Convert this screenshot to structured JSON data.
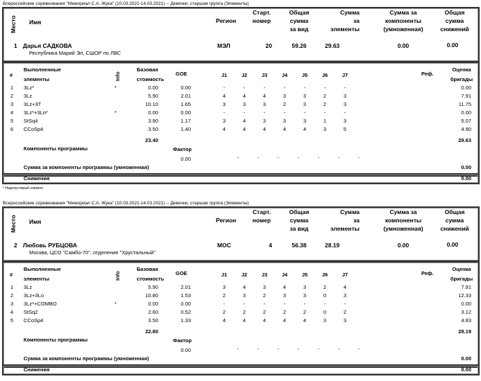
{
  "footnote": "* Недопустимый элемент",
  "labels": {
    "place": "Место",
    "name": "Имя",
    "region": "Регион",
    "start": [
      "Старт.",
      "номер"
    ],
    "total": [
      "Общая",
      "сумма",
      "за вид"
    ],
    "elements_sum": [
      "Сумма",
      "за",
      "элементы"
    ],
    "components_sum": [
      "Сумма за",
      "компоненты",
      "(умноженная)"
    ],
    "deductions_sum": [
      "Общая",
      "сумма",
      "снижений"
    ],
    "num": "#",
    "executed": [
      "Выполненные",
      "элементы"
    ],
    "info": "Info",
    "base": [
      "Базовая",
      "стоимость"
    ],
    "goe": "GOE",
    "judges": [
      "J1",
      "J2",
      "J3",
      "J4",
      "J5",
      "J6",
      "J7"
    ],
    "ref": "Реф.",
    "panel": [
      "Оценка",
      "бригады"
    ],
    "program_components": "Компоненты программы",
    "factor": "Фактор",
    "components_multiplied": "Сумма за компоненты программы (умноженная)",
    "deductions": "Снижения"
  },
  "skaters": [
    {
      "title": "Всероссийские соревнования \"Мемориал С.А. Жука\" (10.03.2021-14.03.2021)  --  Девочки, старшая группа  (Элементы)",
      "place": "1",
      "name": "Дарья САДКОВА",
      "club": "Республика Марий Эл, СШОР по ЛВС",
      "region": "МЭЛ",
      "start_number": "20",
      "total": "59.26",
      "elements_score": "29.63",
      "components_score": "0.00",
      "deductions_total": "0.00",
      "elements": [
        {
          "n": "1",
          "name": "3Lz*",
          "info": "*",
          "base": "0.00",
          "goe": "0.00",
          "j": [
            "-",
            "-",
            "-",
            "-",
            "-",
            "-",
            "-"
          ],
          "score": "0.00"
        },
        {
          "n": "2",
          "name": "3Lz",
          "info": "",
          "base": "5.90",
          "goe": "2.01",
          "j": [
            "4",
            "4",
            "4",
            "3",
            "3",
            "2",
            "3"
          ],
          "score": "7.91"
        },
        {
          "n": "3",
          "name": "3Lz+3T",
          "info": "",
          "base": "10.10",
          "goe": "1.65",
          "j": [
            "3",
            "3",
            "3",
            "2",
            "3",
            "2",
            "3"
          ],
          "score": "11.75"
        },
        {
          "n": "4",
          "name": "3Lz*+3Lo*",
          "info": "*",
          "base": "0.00",
          "goe": "0.00",
          "j": [
            "-",
            "-",
            "-",
            "-",
            "-",
            "-",
            "-"
          ],
          "score": "0.00"
        },
        {
          "n": "5",
          "name": "StSq4",
          "info": "",
          "base": "3.90",
          "goe": "1.17",
          "j": [
            "3",
            "4",
            "3",
            "3",
            "3",
            "1",
            "3"
          ],
          "score": "5.07"
        },
        {
          "n": "6",
          "name": "CCoSp4",
          "info": "",
          "base": "3.50",
          "goe": "1.40",
          "j": [
            "4",
            "4",
            "4",
            "4",
            "4",
            "3",
            "5"
          ],
          "score": "4.90"
        }
      ],
      "base_total": "23.40",
      "elements_total": "29.63",
      "factor": "0.00",
      "component_judges": [
        "-",
        "-",
        "-",
        "-",
        "-",
        "-",
        "-"
      ],
      "components_total": "0.00",
      "deductions": "0.00"
    },
    {
      "title": "Всероссийские соревнования \"Мемориал С.А. Жука\" (10.03.2021-14.03.2021)  --  Девочки, старшая группа  (Элементы)",
      "place": "2",
      "name": "Любовь РУБЦОВА",
      "club": "Москва, ЦСО \"Самбо-70\", отделение \"Хрустальный\"",
      "region": "МОС",
      "start_number": "4",
      "total": "56.38",
      "elements_score": "28.19",
      "components_score": "0.00",
      "deductions_total": "0.00",
      "elements": [
        {
          "n": "1",
          "name": "3Lz",
          "info": "",
          "base": "5.90",
          "goe": "2.01",
          "j": [
            "3",
            "4",
            "3",
            "4",
            "3",
            "2",
            "4"
          ],
          "score": "7.91"
        },
        {
          "n": "2",
          "name": "3Lz+3Lo",
          "info": "",
          "base": "10.80",
          "goe": "1.53",
          "j": [
            "2",
            "3",
            "2",
            "3",
            "3",
            "0",
            "3"
          ],
          "score": "12.33"
        },
        {
          "n": "3",
          "name": "3Lz*+COMBO",
          "info": "*",
          "base": "0.00",
          "goe": "0.00",
          "j": [
            "-",
            "-",
            "-",
            "-",
            "-",
            "-",
            "-"
          ],
          "score": "0.00"
        },
        {
          "n": "4",
          "name": "StSq2",
          "info": "",
          "base": "2.60",
          "goe": "0.52",
          "j": [
            "2",
            "2",
            "2",
            "2",
            "2",
            "0",
            "2"
          ],
          "score": "3.12"
        },
        {
          "n": "5",
          "name": "CCoSp4",
          "info": "",
          "base": "3.50",
          "goe": "1.33",
          "j": [
            "4",
            "4",
            "4",
            "4",
            "4",
            "3",
            "3"
          ],
          "score": "4.83"
        }
      ],
      "base_total": "22.80",
      "elements_total": "28.19",
      "factor": "0.00",
      "component_judges": [
        "-",
        "-",
        "-",
        "-",
        "-",
        "-",
        "-"
      ],
      "components_total": "0.00",
      "deductions": "0.00"
    }
  ]
}
